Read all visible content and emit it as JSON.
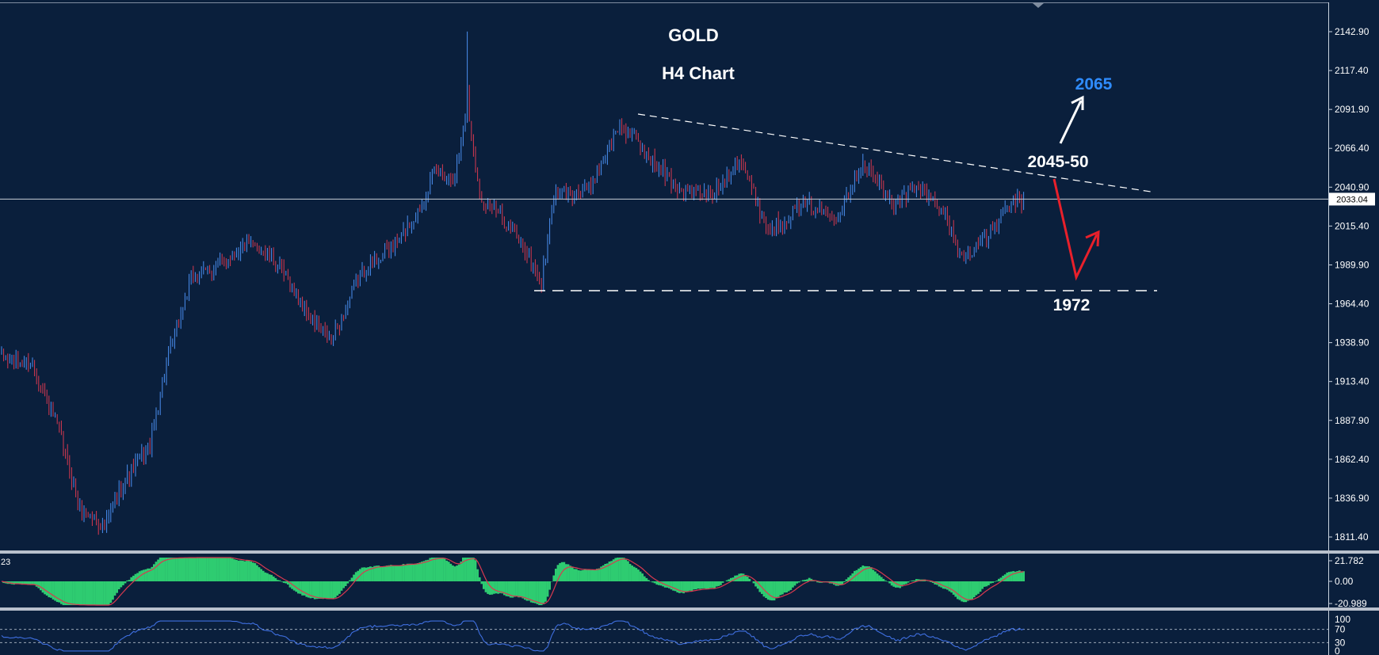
{
  "chart_data": [
    {
      "type": "candlestick",
      "title": "GOLD",
      "subtitle": "H4 Chart",
      "ylim": [
        1800,
        2160
      ],
      "y_ticks": [
        "2142.90",
        "2117.40",
        "2091.90",
        "2066.40",
        "2040.90",
        "2015.40",
        "1989.90",
        "1964.40",
        "1938.90",
        "1913.40",
        "1887.90",
        "1862.40",
        "1836.90",
        "1811.40"
      ],
      "current_price": "2033.04",
      "x_count": 600,
      "colors": {
        "background": "#0a1f3c",
        "bull": "#4a8ff0",
        "bear": "#d8394f",
        "axis_text": "#ffffff"
      },
      "price_path": [
        {
          "i": 0,
          "p": 1928
        },
        {
          "i": 15,
          "p": 1925
        },
        {
          "i": 28,
          "p": 1880
        },
        {
          "i": 38,
          "p": 1830
        },
        {
          "i": 50,
          "p": 1818
        },
        {
          "i": 58,
          "p": 1845
        },
        {
          "i": 72,
          "p": 1872
        },
        {
          "i": 80,
          "p": 1925
        },
        {
          "i": 92,
          "p": 1980
        },
        {
          "i": 105,
          "p": 1990
        },
        {
          "i": 118,
          "p": 2003
        },
        {
          "i": 125,
          "p": 2002
        },
        {
          "i": 134,
          "p": 1990
        },
        {
          "i": 150,
          "p": 1955
        },
        {
          "i": 160,
          "p": 1940
        },
        {
          "i": 175,
          "p": 1985
        },
        {
          "i": 192,
          "p": 2005
        },
        {
          "i": 202,
          "p": 2025
        },
        {
          "i": 210,
          "p": 2050
        },
        {
          "i": 220,
          "p": 2048
        },
        {
          "i": 226,
          "p": 2095
        },
        {
          "i": 232,
          "p": 2035
        },
        {
          "i": 240,
          "p": 2025
        },
        {
          "i": 252,
          "p": 2005
        },
        {
          "i": 262,
          "p": 1978
        },
        {
          "i": 268,
          "p": 2035
        },
        {
          "i": 285,
          "p": 2040
        },
        {
          "i": 300,
          "p": 2082
        },
        {
          "i": 318,
          "p": 2055
        },
        {
          "i": 328,
          "p": 2040
        },
        {
          "i": 345,
          "p": 2035
        },
        {
          "i": 358,
          "p": 2060
        },
        {
          "i": 372,
          "p": 2012
        },
        {
          "i": 390,
          "p": 2030
        },
        {
          "i": 405,
          "p": 2022
        },
        {
          "i": 418,
          "p": 2058
        },
        {
          "i": 432,
          "p": 2030
        },
        {
          "i": 445,
          "p": 2040
        },
        {
          "i": 456,
          "p": 2028
        },
        {
          "i": 466,
          "p": 1995
        },
        {
          "i": 478,
          "p": 2008
        },
        {
          "i": 490,
          "p": 2030
        },
        {
          "i": 496,
          "p": 2033
        }
      ],
      "annotations": [
        {
          "text": "2065",
          "color": "#2f8cff"
        },
        {
          "text": "2045-50",
          "color": "#ffffff"
        },
        {
          "text": "1972",
          "color": "#ffffff"
        }
      ]
    },
    {
      "type": "histogram",
      "name": "oscillator",
      "corner_label": "23",
      "y_ticks": [
        "21.782",
        "0.00",
        "-20.989"
      ],
      "colors": {
        "bar": "#2ecc71",
        "signal": "#d8394f"
      }
    },
    {
      "type": "line",
      "name": "rsi",
      "y_ticks": [
        "100",
        "70",
        "30",
        "0"
      ],
      "levels": [
        70,
        30
      ],
      "colors": {
        "line": "#3f6fe0"
      }
    }
  ]
}
